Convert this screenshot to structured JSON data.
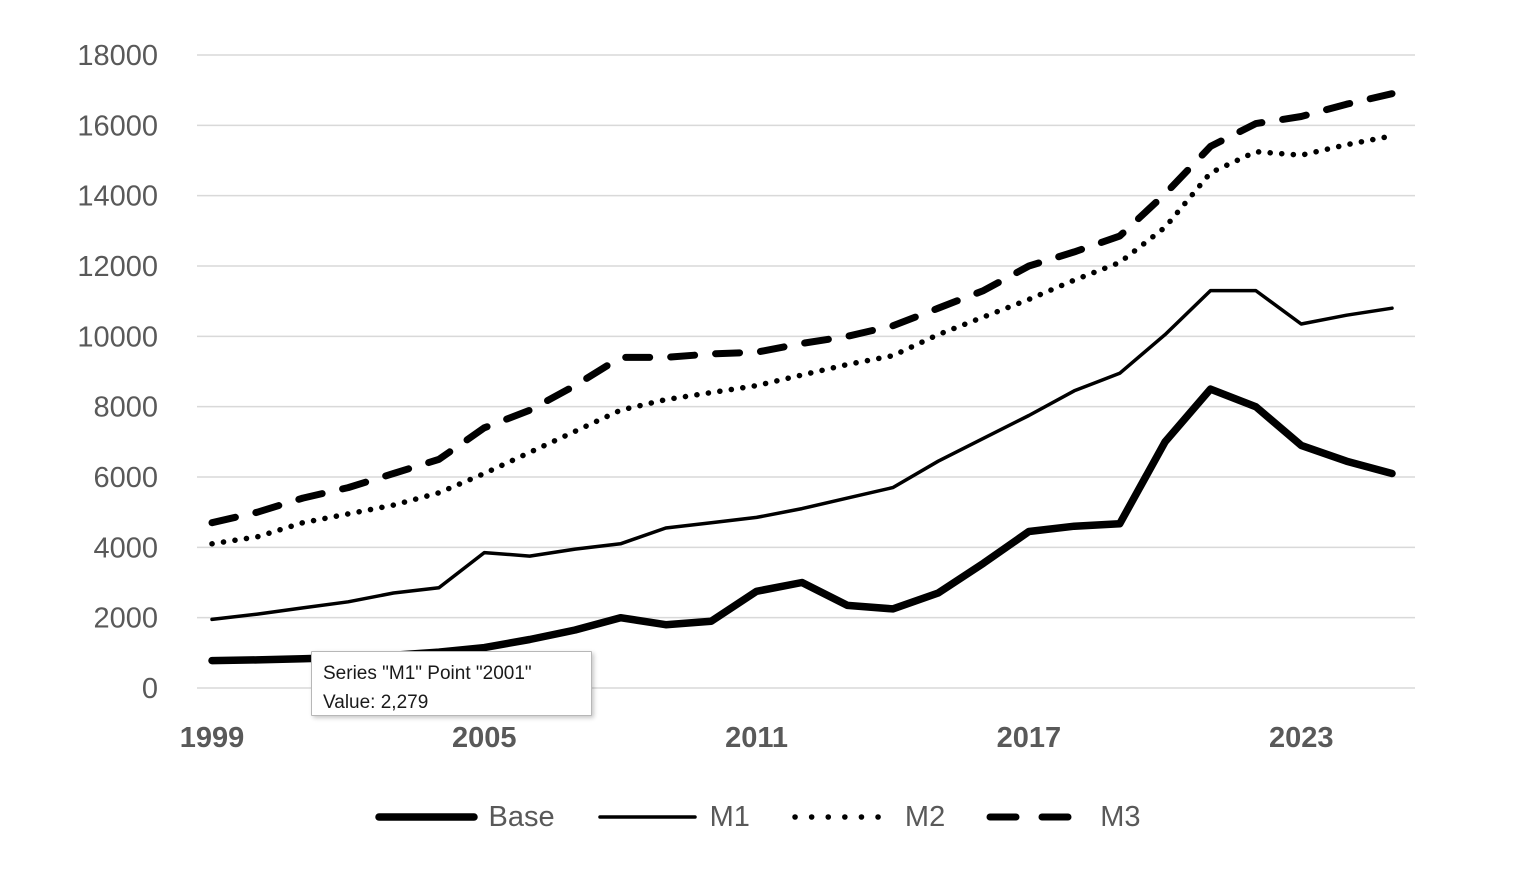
{
  "chart_data": {
    "type": "line",
    "title": "",
    "x": [
      1999,
      2000,
      2001,
      2002,
      2003,
      2004,
      2005,
      2006,
      2007,
      2008,
      2009,
      2010,
      2011,
      2012,
      2013,
      2014,
      2015,
      2016,
      2017,
      2018,
      2019,
      2020,
      2021,
      2022,
      2023,
      2024,
      2025
    ],
    "x_tick_labels": [
      "1999",
      "2005",
      "2011",
      "2017",
      "2023"
    ],
    "x_tick_years": [
      1999,
      2005,
      2011,
      2017,
      2023
    ],
    "y_ticks": [
      0,
      2000,
      4000,
      6000,
      8000,
      10000,
      12000,
      14000,
      16000,
      18000
    ],
    "ylim": [
      0,
      18000
    ],
    "grid": true,
    "legend_position": "bottom",
    "series": [
      {
        "name": "Base",
        "style": "solid-thick",
        "values": [
          780,
          800,
          830,
          870,
          930,
          1020,
          1150,
          1380,
          1650,
          2000,
          1800,
          1900,
          2750,
          3000,
          2350,
          2250,
          2700,
          3550,
          4450,
          4600,
          4670,
          7000,
          8500,
          8000,
          6900,
          6450,
          6100
        ]
      },
      {
        "name": "M1",
        "style": "solid-thin",
        "values": [
          1950,
          2100,
          2279,
          2450,
          2700,
          2850,
          3850,
          3750,
          3950,
          4100,
          4550,
          4700,
          4850,
          5100,
          5400,
          5700,
          6450,
          7100,
          7750,
          8450,
          8950,
          10050,
          11300,
          11300,
          10350,
          10600,
          10800
        ]
      },
      {
        "name": "M2",
        "style": "dotted",
        "values": [
          4100,
          4300,
          4700,
          4950,
          5200,
          5550,
          6100,
          6700,
          7300,
          7900,
          8200,
          8400,
          8600,
          8900,
          9200,
          9450,
          10050,
          10550,
          11050,
          11600,
          12100,
          13100,
          14650,
          15250,
          15150,
          15450,
          15700
        ]
      },
      {
        "name": "M3",
        "style": "dashed",
        "values": [
          4700,
          5000,
          5400,
          5700,
          6100,
          6500,
          7400,
          7900,
          8600,
          9400,
          9400,
          9500,
          9550,
          9800,
          10000,
          10300,
          10800,
          11300,
          12000,
          12400,
          12850,
          14050,
          15400,
          16050,
          16250,
          16600,
          16900
        ]
      }
    ]
  },
  "tooltip": {
    "line1": "Series \"M1\" Point \"2001\"",
    "line2": "Value: 2,279"
  },
  "colors": {
    "series_line": "#000000",
    "axis_labels": "#595959",
    "gridlines": "#d9d9d9",
    "tooltip_border": "#b7b7b7",
    "tooltip_background": "#ffffff"
  }
}
